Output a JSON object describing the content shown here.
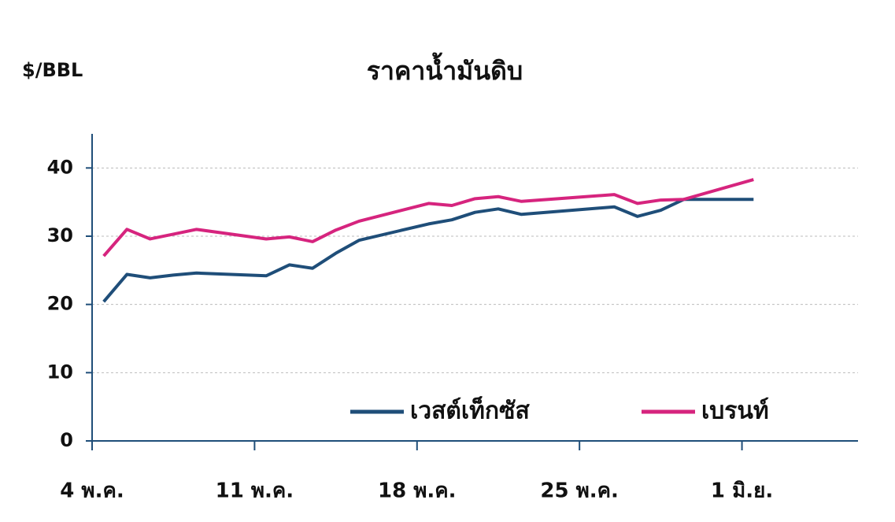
{
  "chart_data": {
    "type": "line",
    "title": "ราคาน้ำมันดิบ",
    "y_label": "$/BBL",
    "categories": [
      "4 พ.ค.",
      null,
      null,
      null,
      null,
      null,
      null,
      "11 พ.ค.",
      null,
      null,
      null,
      null,
      null,
      null,
      "18 พ.ค.",
      null,
      null,
      null,
      null,
      null,
      null,
      "25 พ.ค.",
      null,
      null,
      null,
      null,
      null,
      null,
      "1 มิ.ย.",
      null,
      null,
      null,
      null
    ],
    "series": [
      {
        "name": "เวสต์เท็กซัส",
        "color": "#1f4e79",
        "values": [
          20.4,
          24.4,
          23.9,
          24.3,
          24.6,
          null,
          null,
          24.2,
          25.8,
          25.3,
          27.5,
          29.4,
          null,
          null,
          31.8,
          32.4,
          33.5,
          34.0,
          33.2,
          null,
          null,
          null,
          34.3,
          32.9,
          33.8,
          35.4,
          null,
          null,
          35.4,
          null,
          null,
          null,
          null
        ]
      },
      {
        "name": "เบรนท์",
        "color": "#d6247e",
        "values": [
          27.1,
          31.0,
          29.6,
          30.3,
          31.0,
          null,
          null,
          29.6,
          29.9,
          29.2,
          30.9,
          32.2,
          null,
          null,
          34.8,
          34.5,
          35.5,
          35.8,
          35.1,
          null,
          null,
          null,
          36.1,
          34.8,
          35.3,
          35.4,
          null,
          null,
          38.3,
          null,
          null,
          null,
          null
        ]
      }
    ],
    "connect_gaps": true,
    "ylim": [
      0,
      45
    ],
    "yticks": [
      0,
      10,
      20,
      30,
      40
    ],
    "grid": true,
    "legend": "bottom-right"
  }
}
